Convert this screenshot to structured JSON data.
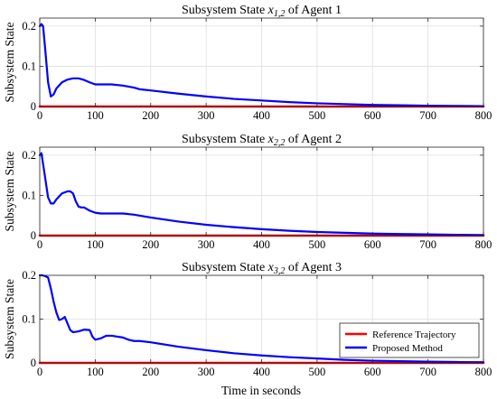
{
  "figure": {
    "xlabel": "Time in seconds"
  },
  "chart_data": [
    {
      "type": "line",
      "title_prefix": "Subsystem State ",
      "title_var": "x",
      "title_sub": "1,2",
      "title_suffix": " of Agent 1",
      "ylabel": "Subsystem State",
      "xlim": [
        0,
        800
      ],
      "ylim": [
        0,
        0.22
      ],
      "xticks": [
        0,
        100,
        200,
        300,
        400,
        500,
        600,
        700,
        800
      ],
      "yticks": [
        0,
        0.1,
        0.2
      ],
      "ytick_labels": [
        "0",
        "0.1",
        "0.2"
      ],
      "grid": true,
      "series": [
        {
          "name": "Reference Trajectory",
          "color": "#ff0000",
          "x": [
            0,
            800
          ],
          "y": [
            0,
            0
          ]
        },
        {
          "name": "Proposed Method",
          "color": "#0000ff",
          "x": [
            0,
            3,
            6,
            10,
            15,
            20,
            25,
            30,
            40,
            50,
            60,
            70,
            80,
            90,
            100,
            110,
            130,
            150,
            170,
            180,
            200,
            250,
            300,
            350,
            400,
            450,
            500,
            550,
            600,
            650,
            700,
            750,
            800
          ],
          "y": [
            0.2,
            0.205,
            0.2,
            0.14,
            0.06,
            0.025,
            0.03,
            0.045,
            0.06,
            0.067,
            0.07,
            0.07,
            0.066,
            0.06,
            0.055,
            0.055,
            0.055,
            0.052,
            0.047,
            0.043,
            0.04,
            0.032,
            0.025,
            0.019,
            0.015,
            0.011,
            0.008,
            0.006,
            0.004,
            0.003,
            0.002,
            0.0015,
            0.001
          ]
        }
      ]
    },
    {
      "type": "line",
      "title_prefix": "Subsystem State ",
      "title_var": "x",
      "title_sub": "2,2",
      "title_suffix": " of Agent 2",
      "ylabel": "Subsystem State",
      "xlim": [
        0,
        800
      ],
      "ylim": [
        0,
        0.22
      ],
      "xticks": [
        0,
        100,
        200,
        300,
        400,
        500,
        600,
        700,
        800
      ],
      "yticks": [
        0,
        0.1,
        0.2
      ],
      "ytick_labels": [
        "0",
        "0.1",
        "0.2"
      ],
      "grid": true,
      "series": [
        {
          "name": "Reference Trajectory",
          "color": "#ff0000",
          "x": [
            0,
            800
          ],
          "y": [
            0,
            0
          ]
        },
        {
          "name": "Proposed Method",
          "color": "#0000ff",
          "x": [
            0,
            3,
            8,
            15,
            20,
            25,
            30,
            40,
            50,
            55,
            60,
            65,
            70,
            75,
            80,
            90,
            100,
            110,
            120,
            130,
            150,
            170,
            200,
            250,
            300,
            350,
            400,
            450,
            500,
            550,
            600,
            650,
            700,
            750,
            800
          ],
          "y": [
            0.2,
            0.205,
            0.16,
            0.095,
            0.08,
            0.08,
            0.09,
            0.105,
            0.11,
            0.11,
            0.105,
            0.085,
            0.072,
            0.07,
            0.07,
            0.062,
            0.057,
            0.055,
            0.055,
            0.055,
            0.055,
            0.052,
            0.045,
            0.035,
            0.027,
            0.021,
            0.016,
            0.012,
            0.009,
            0.007,
            0.005,
            0.004,
            0.003,
            0.002,
            0.0015
          ]
        }
      ]
    },
    {
      "type": "line",
      "title_prefix": "Subsystem State ",
      "title_var": "x",
      "title_sub": "3,2",
      "title_suffix": " of Agent 3",
      "ylabel": "Subsystem State",
      "xlabel": "Time in seconds",
      "xlim": [
        0,
        800
      ],
      "ylim": [
        0,
        0.2
      ],
      "xticks": [
        0,
        100,
        200,
        300,
        400,
        500,
        600,
        700,
        800
      ],
      "yticks": [
        0,
        0.1,
        0.2
      ],
      "ytick_labels": [
        "0",
        "0.1",
        "0.2"
      ],
      "grid": true,
      "legend": {
        "position": "bottom-right",
        "entries": [
          "Reference Trajectory",
          "Proposed Method"
        ]
      },
      "series": [
        {
          "name": "Reference Trajectory",
          "color": "#ff0000",
          "x": [
            0,
            800
          ],
          "y": [
            0,
            0
          ]
        },
        {
          "name": "Proposed Method",
          "color": "#0000ff",
          "x": [
            0,
            5,
            10,
            15,
            20,
            25,
            30,
            35,
            40,
            45,
            50,
            55,
            60,
            70,
            80,
            90,
            95,
            100,
            110,
            120,
            130,
            140,
            150,
            160,
            170,
            180,
            200,
            250,
            300,
            350,
            400,
            450,
            500,
            550,
            600,
            650,
            700,
            750,
            800
          ],
          "y": [
            0.2,
            0.2,
            0.198,
            0.195,
            0.17,
            0.14,
            0.115,
            0.098,
            0.1,
            0.105,
            0.09,
            0.075,
            0.07,
            0.072,
            0.076,
            0.075,
            0.06,
            0.053,
            0.056,
            0.062,
            0.062,
            0.06,
            0.058,
            0.053,
            0.05,
            0.05,
            0.047,
            0.037,
            0.029,
            0.022,
            0.017,
            0.013,
            0.01,
            0.007,
            0.005,
            0.004,
            0.003,
            0.002,
            0.0015
          ]
        }
      ]
    }
  ]
}
